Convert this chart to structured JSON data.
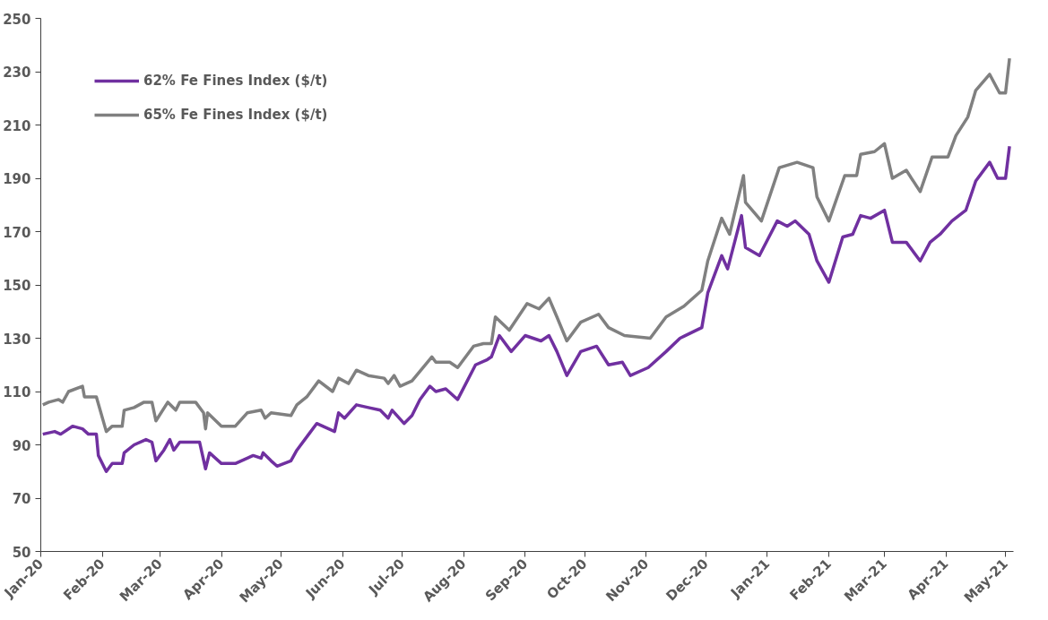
{
  "chart_data": {
    "type": "line",
    "ylim": [
      50,
      250
    ],
    "yticks": [
      50,
      70,
      90,
      110,
      130,
      150,
      170,
      190,
      210,
      230,
      250
    ],
    "xlim": [
      "2020-01-01",
      "2021-05-05"
    ],
    "xticks": [
      {
        "value": "2020-01-01",
        "label": "Jan-20"
      },
      {
        "value": "2020-02-01",
        "label": "Feb-20"
      },
      {
        "value": "2020-03-01",
        "label": "Mar-20"
      },
      {
        "value": "2020-04-01",
        "label": "Apr-20"
      },
      {
        "value": "2020-05-01",
        "label": "May-20"
      },
      {
        "value": "2020-06-01",
        "label": "Jun-20"
      },
      {
        "value": "2020-07-01",
        "label": "Jul-20"
      },
      {
        "value": "2020-08-01",
        "label": "Aug-20"
      },
      {
        "value": "2020-09-01",
        "label": "Sep-20"
      },
      {
        "value": "2020-10-01",
        "label": "Oct-20"
      },
      {
        "value": "2020-11-01",
        "label": "Nov-20"
      },
      {
        "value": "2020-12-01",
        "label": "Dec-20"
      },
      {
        "value": "2021-01-01",
        "label": "Jan-21"
      },
      {
        "value": "2021-02-01",
        "label": "Feb-21"
      },
      {
        "value": "2021-03-01",
        "label": "Mar-21"
      },
      {
        "value": "2021-04-01",
        "label": "Apr-21"
      },
      {
        "value": "2021-05-01",
        "label": "May-21"
      }
    ],
    "grid": false,
    "legend": "top left",
    "marker": "none",
    "line_style": "solid",
    "series": [
      {
        "name": "62% Fe Fines Index ($/t)",
        "color": "#7030a0",
        "x": [
          "2020-01-02",
          "2020-01-08",
          "2020-01-11",
          "2020-01-17",
          "2020-01-22",
          "2020-01-25",
          "2020-01-29",
          "2020-01-30",
          "2020-02-03",
          "2020-02-06",
          "2020-02-11",
          "2020-02-12",
          "2020-02-17",
          "2020-02-23",
          "2020-02-26",
          "2020-02-28",
          "2020-03-03",
          "2020-03-06",
          "2020-03-08",
          "2020-03-11",
          "2020-03-15",
          "2020-03-21",
          "2020-03-24",
          "2020-03-26",
          "2020-04-01",
          "2020-04-08",
          "2020-04-17",
          "2020-04-21",
          "2020-04-22",
          "2020-04-26",
          "2020-04-29",
          "2020-05-06",
          "2020-05-09",
          "2020-05-15",
          "2020-05-19",
          "2020-05-22",
          "2020-05-28",
          "2020-05-30",
          "2020-06-02",
          "2020-06-08",
          "2020-06-14",
          "2020-06-20",
          "2020-06-24",
          "2020-06-26",
          "2020-07-02",
          "2020-07-06",
          "2020-07-10",
          "2020-07-15",
          "2020-07-18",
          "2020-07-23",
          "2020-07-29",
          "2020-08-07",
          "2020-08-13",
          "2020-08-15",
          "2020-08-19",
          "2020-08-25",
          "2020-09-01",
          "2020-09-09",
          "2020-09-13",
          "2020-09-17",
          "2020-09-22",
          "2020-09-29",
          "2020-10-07",
          "2020-10-13",
          "2020-10-20",
          "2020-10-24",
          "2020-11-02",
          "2020-11-11",
          "2020-11-18",
          "2020-11-29",
          "2020-12-02",
          "2020-12-09",
          "2020-12-12",
          "2020-12-19",
          "2020-12-21",
          "2020-12-28",
          "2021-01-06",
          "2021-01-11",
          "2021-01-15",
          "2021-01-22",
          "2021-01-26",
          "2021-02-01",
          "2021-02-08",
          "2021-02-13",
          "2021-02-17",
          "2021-02-22",
          "2021-03-01",
          "2021-03-05",
          "2021-03-12",
          "2021-03-19",
          "2021-03-24",
          "2021-03-29",
          "2021-04-04",
          "2021-04-11",
          "2021-04-16",
          "2021-04-23",
          "2021-04-27",
          "2021-05-01",
          "2021-05-03"
        ],
        "values": [
          94,
          95,
          94,
          97,
          96,
          94,
          94,
          86,
          80,
          83,
          83,
          87,
          90,
          92,
          91,
          84,
          88,
          92,
          88,
          91,
          91,
          91,
          81,
          87,
          83,
          83,
          86,
          85,
          87,
          84,
          82,
          84,
          88,
          94,
          98,
          97,
          95,
          102,
          100,
          105,
          104,
          103,
          100,
          103,
          98,
          101,
          107,
          112,
          110,
          111,
          107,
          120,
          122,
          123,
          131,
          125,
          131,
          129,
          131,
          125,
          116,
          125,
          127,
          120,
          121,
          116,
          119,
          125,
          130,
          134,
          147,
          161,
          156,
          176,
          164,
          161,
          174,
          172,
          174,
          169,
          159,
          151,
          168,
          169,
          176,
          175,
          178,
          166,
          166,
          159,
          166,
          169,
          174,
          178,
          189,
          196,
          190,
          190,
          202
        ]
      },
      {
        "name": "65% Fe Fines Index ($/t)",
        "color": "#808080",
        "x": [
          "2020-01-02",
          "2020-01-05",
          "2020-01-10",
          "2020-01-12",
          "2020-01-15",
          "2020-01-22",
          "2020-01-23",
          "2020-01-29",
          "2020-02-03",
          "2020-02-06",
          "2020-02-11",
          "2020-02-12",
          "2020-02-17",
          "2020-02-22",
          "2020-02-26",
          "2020-02-28",
          "2020-03-05",
          "2020-03-09",
          "2020-03-11",
          "2020-03-19",
          "2020-03-23",
          "2020-03-24",
          "2020-03-25",
          "2020-04-01",
          "2020-04-08",
          "2020-04-14",
          "2020-04-21",
          "2020-04-23",
          "2020-04-26",
          "2020-05-06",
          "2020-05-09",
          "2020-05-14",
          "2020-05-20",
          "2020-05-27",
          "2020-05-30",
          "2020-06-04",
          "2020-06-08",
          "2020-06-14",
          "2020-06-22",
          "2020-06-24",
          "2020-06-27",
          "2020-06-30",
          "2020-07-06",
          "2020-07-16",
          "2020-07-18",
          "2020-07-25",
          "2020-07-29",
          "2020-08-06",
          "2020-08-11",
          "2020-08-15",
          "2020-08-17",
          "2020-08-24",
          "2020-09-02",
          "2020-09-08",
          "2020-09-13",
          "2020-09-17",
          "2020-09-22",
          "2020-09-29",
          "2020-10-08",
          "2020-10-13",
          "2020-10-21",
          "2020-11-03",
          "2020-11-11",
          "2020-11-20",
          "2020-11-29",
          "2020-12-02",
          "2020-12-09",
          "2020-12-13",
          "2020-12-20",
          "2020-12-21",
          "2020-12-29",
          "2021-01-07",
          "2021-01-16",
          "2021-01-24",
          "2021-01-26",
          "2021-02-01",
          "2021-02-09",
          "2021-02-15",
          "2021-02-17",
          "2021-02-24",
          "2021-03-01",
          "2021-03-05",
          "2021-03-12",
          "2021-03-19",
          "2021-03-25",
          "2021-04-02",
          "2021-04-06",
          "2021-04-12",
          "2021-04-16",
          "2021-04-23",
          "2021-04-28",
          "2021-05-01",
          "2021-05-03"
        ],
        "values": [
          105,
          106,
          107,
          106,
          110,
          112,
          108,
          108,
          95,
          97,
          97,
          103,
          104,
          106,
          106,
          99,
          106,
          103,
          106,
          106,
          102,
          96,
          102,
          97,
          97,
          102,
          103,
          100,
          102,
          101,
          105,
          108,
          114,
          110,
          115,
          113,
          118,
          116,
          115,
          113,
          116,
          112,
          114,
          123,
          121,
          121,
          119,
          127,
          128,
          128,
          138,
          133,
          143,
          141,
          145,
          138,
          129,
          136,
          139,
          134,
          131,
          130,
          138,
          142,
          148,
          159,
          175,
          169,
          191,
          181,
          174,
          194,
          196,
          194,
          183,
          174,
          191,
          191,
          199,
          200,
          203,
          190,
          193,
          185,
          198,
          198,
          206,
          213,
          223,
          229,
          222,
          222,
          235
        ]
      }
    ]
  }
}
